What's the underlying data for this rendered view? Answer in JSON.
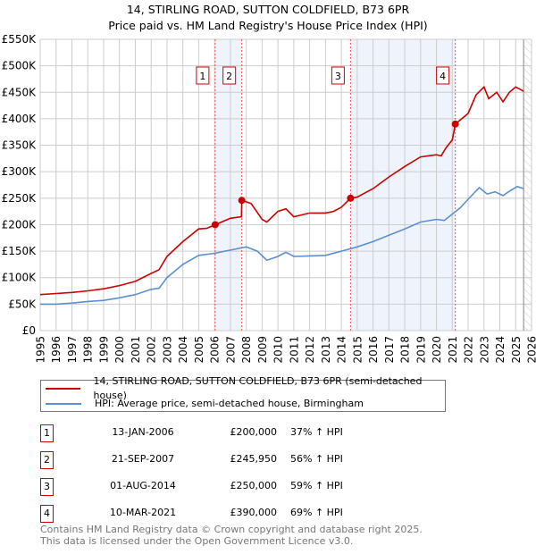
{
  "title_line1": "14, STIRLING ROAD, SUTTON COLDFIELD, B73 6PR",
  "title_line2": "Price paid vs. HM Land Registry's House Price Index (HPI)",
  "colors": {
    "property": "#cc0000",
    "hpi": "#5b8fd0",
    "shade": "#eef3fc",
    "grid": "#cccccc"
  },
  "chart_data": {
    "type": "line",
    "xlim": [
      1995,
      2026
    ],
    "ylim": [
      0,
      550000
    ],
    "x_ticks": [
      "1995",
      "1996",
      "1997",
      "1998",
      "1999",
      "2000",
      "2001",
      "2002",
      "2003",
      "2004",
      "2005",
      "2006",
      "2007",
      "2008",
      "2009",
      "2010",
      "2011",
      "2012",
      "2013",
      "2014",
      "2015",
      "2016",
      "2017",
      "2018",
      "2019",
      "2020",
      "2021",
      "2022",
      "2023",
      "2024",
      "2025",
      "2026"
    ],
    "y_ticks": [
      {
        "v": 0,
        "label": "£0"
      },
      {
        "v": 50000,
        "label": "£50K"
      },
      {
        "v": 100000,
        "label": "£100K"
      },
      {
        "v": 150000,
        "label": "£150K"
      },
      {
        "v": 200000,
        "label": "£200K"
      },
      {
        "v": 250000,
        "label": "£250K"
      },
      {
        "v": 300000,
        "label": "£300K"
      },
      {
        "v": 350000,
        "label": "£350K"
      },
      {
        "v": 400000,
        "label": "£400K"
      },
      {
        "v": 450000,
        "label": "£450K"
      },
      {
        "v": 500000,
        "label": "£500K"
      },
      {
        "v": 550000,
        "label": "£550K"
      }
    ],
    "grid": true,
    "data_end_year": 2025.5,
    "series": [
      {
        "name": "14, STIRLING ROAD, SUTTON COLDFIELD, B73 6PR (semi-detached house)",
        "color_key": "property",
        "x": [
          1995,
          1996,
          1997,
          1998,
          1999,
          2000,
          2001,
          2002,
          2002.5,
          2003,
          2004,
          2005,
          2005.5,
          2006.04,
          2007,
          2007.7,
          2007.72,
          2008.3,
          2009,
          2009.3,
          2010,
          2010.5,
          2011,
          2012,
          2013,
          2013.5,
          2014,
          2014.58,
          2015,
          2016,
          2017,
          2018,
          2019,
          2020,
          2020.3,
          2020.6,
          2021.0,
          2021.19,
          2021.6,
          2022,
          2022.5,
          2023,
          2023.3,
          2023.8,
          2024.2,
          2024.6,
          2025,
          2025.5
        ],
        "y": [
          68000,
          70000,
          72000,
          75000,
          79000,
          85000,
          93000,
          108000,
          115000,
          140000,
          168000,
          192000,
          193000,
          200000,
          212000,
          215000,
          245950,
          240000,
          210000,
          205000,
          225000,
          230000,
          215000,
          222000,
          222000,
          225000,
          233000,
          250000,
          252000,
          268000,
          290000,
          310000,
          328000,
          332000,
          330000,
          345000,
          360000,
          390000,
          400000,
          410000,
          445000,
          460000,
          438000,
          450000,
          432000,
          450000,
          460000,
          452000
        ]
      },
      {
        "name": "HPI: Average price, semi-detached house, Birmingham",
        "color_key": "hpi",
        "x": [
          1995,
          1996,
          1997,
          1998,
          1999,
          2000,
          2001,
          2002,
          2002.5,
          2003,
          2004,
          2005,
          2006,
          2007,
          2008,
          2008.7,
          2009.3,
          2010,
          2010.5,
          2011,
          2012,
          2013,
          2014,
          2015,
          2016,
          2017,
          2018,
          2019,
          2020,
          2020.5,
          2021,
          2021.5,
          2022,
          2022.7,
          2023.2,
          2023.7,
          2024.2,
          2024.7,
          2025.1,
          2025.5
        ],
        "y": [
          50000,
          50000,
          52000,
          55000,
          57000,
          62000,
          68000,
          78000,
          80000,
          100000,
          125000,
          142000,
          146000,
          152000,
          158000,
          150000,
          133000,
          140000,
          148000,
          140000,
          141000,
          142000,
          150000,
          158000,
          168000,
          180000,
          192000,
          205000,
          210000,
          208000,
          220000,
          232000,
          248000,
          270000,
          258000,
          262000,
          255000,
          265000,
          272000,
          268000
        ]
      }
    ],
    "sales": [
      {
        "label": "1",
        "x": 2006.04,
        "y": 200000
      },
      {
        "label": "2",
        "x": 2007.72,
        "y": 245950
      },
      {
        "label": "3",
        "x": 2014.58,
        "y": 250000
      },
      {
        "label": "4",
        "x": 2021.19,
        "y": 390000
      }
    ]
  },
  "legend": {
    "property": "14, STIRLING ROAD, SUTTON COLDFIELD, B73 6PR (semi-detached house)",
    "hpi": "HPI: Average price, semi-detached house, Birmingham"
  },
  "transactions": [
    {
      "num": "1",
      "date": "13-JAN-2006",
      "price": "£200,000",
      "pct": "37% ↑ HPI"
    },
    {
      "num": "2",
      "date": "21-SEP-2007",
      "price": "£245,950",
      "pct": "56% ↑ HPI"
    },
    {
      "num": "3",
      "date": "01-AUG-2014",
      "price": "£250,000",
      "pct": "59% ↑ HPI"
    },
    {
      "num": "4",
      "date": "10-MAR-2021",
      "price": "£390,000",
      "pct": "69% ↑ HPI"
    }
  ],
  "footer_line1": "Contains HM Land Registry data © Crown copyright and database right 2025.",
  "footer_line2": "This data is licensed under the Open Government Licence v3.0."
}
